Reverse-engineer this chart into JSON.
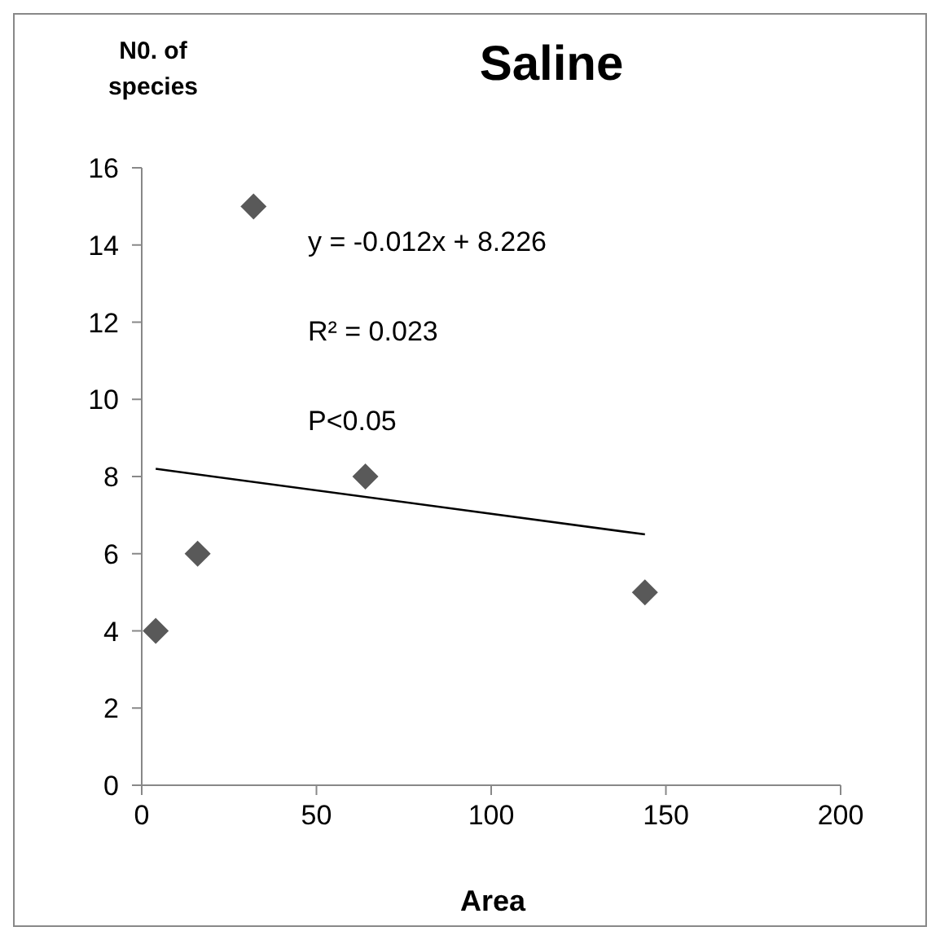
{
  "chart_data": {
    "type": "scatter",
    "title": "Saline",
    "xlabel": "Area",
    "ylabel": "N0. of species",
    "annotations": [
      "y = -0.012x + 8.226",
      "R² = 0.023",
      "P<0.05"
    ],
    "series": [
      {
        "x": [
          4,
          16,
          32,
          64,
          144
        ],
        "values": [
          4,
          6,
          15,
          8,
          5
        ],
        "color": "#595959",
        "marker": "diamond"
      },
      {
        "type": "line",
        "x": [
          4,
          144
        ],
        "values": [
          8.2,
          6.5
        ],
        "color": "#000000",
        "marker": "none"
      }
    ],
    "xlim": [
      0,
      200
    ],
    "xticks": [
      0,
      50,
      100,
      150,
      200
    ],
    "ylim": [
      0,
      16
    ],
    "yticks": [
      0,
      2,
      4,
      6,
      8,
      10,
      12,
      14,
      16
    ],
    "grid": false,
    "legend": false
  }
}
